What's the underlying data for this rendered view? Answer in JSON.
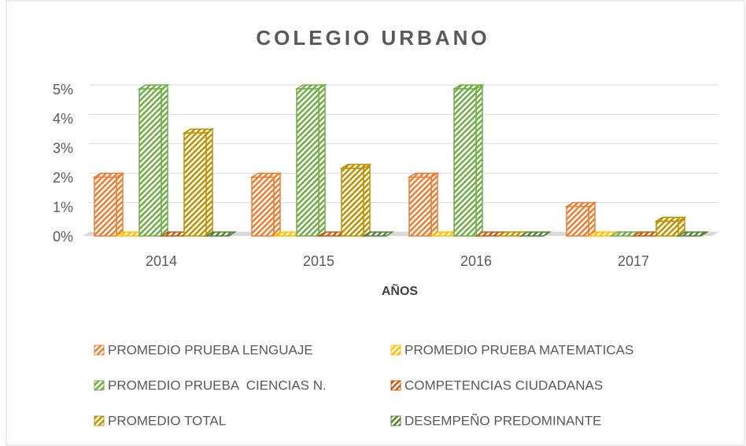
{
  "chart_data": {
    "type": "bar3d",
    "title": "COLEGIO URBANO",
    "x_label": "AÑOS",
    "categories": [
      "2014",
      "2015",
      "2016",
      "2017"
    ],
    "series": [
      {
        "name": "PROMEDIO PRUEBA LENGUAJE",
        "color": "#ed7d31",
        "values": [
          2,
          2,
          2,
          1
        ]
      },
      {
        "name": "PROMEDIO PRUEBA MATEMATICAS",
        "color": "#ffc000",
        "values": [
          0,
          0,
          0,
          0
        ]
      },
      {
        "name": "PROMEDIO PRUEBA  CIENCIAS N.",
        "color": "#70ad47",
        "values": [
          5,
          5,
          5,
          0
        ]
      },
      {
        "name": "COMPETENCIAS CIUDADANAS",
        "color": "#c55a11",
        "values": [
          0,
          0,
          0,
          0
        ]
      },
      {
        "name": "PROMEDIO TOTAL",
        "color": "#bf9000",
        "values": [
          3.5,
          2.3,
          0,
          0.5
        ]
      },
      {
        "name": "DESEMPEÑO PREDOMINANTE",
        "color": "#548235",
        "values": [
          0,
          0,
          0,
          0
        ]
      }
    ],
    "ylim": [
      0,
      5
    ],
    "yticks": [
      {
        "value": 0,
        "label": "0%"
      },
      {
        "value": 1,
        "label": "1%"
      },
      {
        "value": 2,
        "label": "2%"
      },
      {
        "value": 3,
        "label": "3%"
      },
      {
        "value": 4,
        "label": "4%"
      },
      {
        "value": 5,
        "label": "5%"
      }
    ],
    "grid": true
  }
}
